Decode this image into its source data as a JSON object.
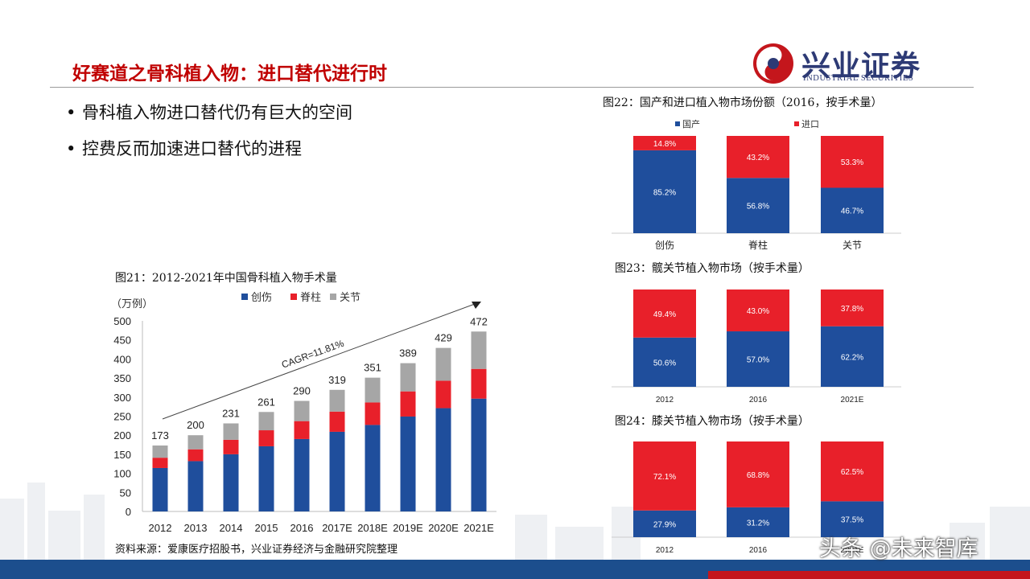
{
  "header": {
    "title": "好赛道之骨科植入物：进口替代进行时",
    "logo_name": "兴业证券",
    "logo_sub": "INDUSTRIAL SECURITIES"
  },
  "bullets": [
    "骨科植入物进口替代仍有巨大的空间",
    "控费反而加速进口替代的进程"
  ],
  "source_note": "资料来源：爱康医疗招股书，兴业证券经济与金融研究院整理",
  "watermark": "头条 @未来智库",
  "colors": {
    "blue": "#1f4e9c",
    "red": "#e8202a",
    "gray": "#a6a6a6",
    "title_red": "#c00000"
  },
  "chart_data": [
    {
      "id": "fig21",
      "type": "bar",
      "stacked": true,
      "caption": "图21：2012-2021年中国骨科植入物手术量",
      "unit_label": "（万例）",
      "categories": [
        "2012",
        "2013",
        "2014",
        "2015",
        "2016",
        "2017E",
        "2018E",
        "2019E",
        "2020E",
        "2021E"
      ],
      "series": [
        {
          "name": "创伤",
          "values": [
            114,
            132,
            150,
            171,
            190,
            209,
            227,
            249,
            271,
            296
          ]
        },
        {
          "name": "脊柱",
          "values": [
            27,
            31,
            38,
            42,
            47,
            53,
            59,
            66,
            72,
            78
          ]
        },
        {
          "name": "关节",
          "values": [
            32,
            37,
            43,
            48,
            53,
            57,
            65,
            74,
            86,
            98
          ]
        }
      ],
      "totals": [
        173,
        200,
        231,
        261,
        290,
        319,
        351,
        389,
        429,
        472
      ],
      "annotation": "CAGR=11.81%",
      "ylim": [
        0,
        500
      ],
      "yticks": [
        0,
        50,
        100,
        150,
        200,
        250,
        300,
        350,
        400,
        450,
        500
      ],
      "legend_position": "top"
    },
    {
      "id": "fig22",
      "type": "bar",
      "stacked": true,
      "caption": "图22：国产和进口植入物市场份额（2016，按手术量）",
      "categories": [
        "创伤",
        "脊柱",
        "关节"
      ],
      "series": [
        {
          "name": "国产",
          "values": [
            85.2,
            56.8,
            46.7
          ],
          "labels": [
            "85.2%",
            "56.8%",
            "46.7%"
          ]
        },
        {
          "name": "进口",
          "values": [
            14.8,
            43.2,
            53.3
          ],
          "labels": [
            "14.8%",
            "43.2%",
            "53.3%"
          ]
        }
      ],
      "ylim": [
        0,
        100
      ],
      "legend_position": "top"
    },
    {
      "id": "fig23",
      "type": "bar",
      "stacked": true,
      "caption": "图23：髋关节植入物市场（按手术量）",
      "categories": [
        "2012",
        "2016",
        "2021E"
      ],
      "series": [
        {
          "values": [
            50.6,
            57.0,
            62.2
          ],
          "labels": [
            "50.6%",
            "57.0%",
            "62.2%"
          ]
        },
        {
          "values": [
            49.4,
            43.0,
            37.8
          ],
          "labels": [
            "49.4%",
            "43.0%",
            "37.8%"
          ]
        }
      ],
      "ylim": [
        0,
        100
      ]
    },
    {
      "id": "fig24",
      "type": "bar",
      "stacked": true,
      "caption": "图24：膝关节植入物市场（按手术量）",
      "categories": [
        "2012",
        "2016",
        "2021E"
      ],
      "series": [
        {
          "values": [
            27.9,
            31.2,
            37.5
          ],
          "labels": [
            "27.9%",
            "31.2%",
            "37.5%"
          ]
        },
        {
          "values": [
            72.1,
            68.8,
            62.5
          ],
          "labels": [
            "72.1%",
            "68.8%",
            "62.5%"
          ]
        }
      ],
      "ylim": [
        0,
        100
      ]
    }
  ]
}
